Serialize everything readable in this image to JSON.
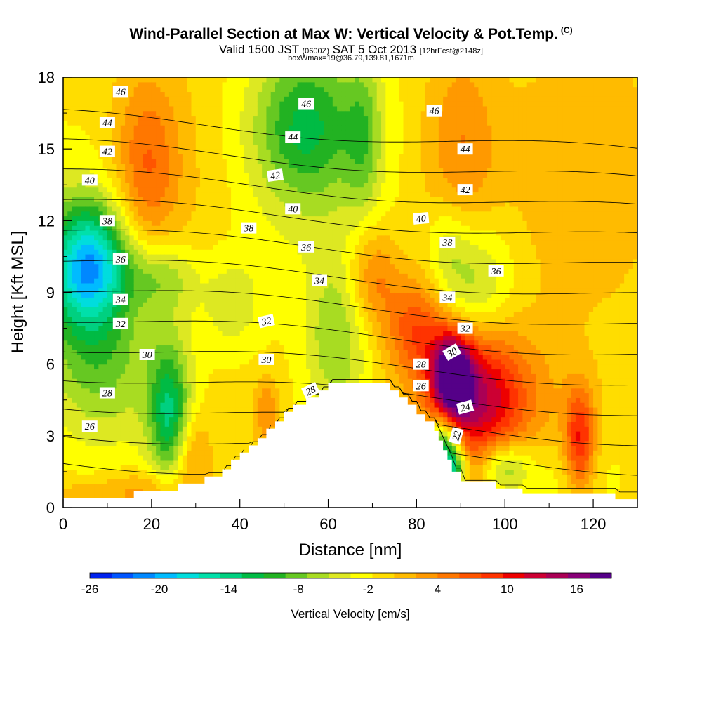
{
  "header": {
    "title": "Wind-Parallel Section at Max W: Vertical Velocity & Pot.Temp.",
    "copyright": "(C)",
    "subtitle_main_a": "Valid 1500 JST",
    "subtitle_small_a": "(0600Z)",
    "subtitle_main_b": "SAT 5 Oct 2013",
    "subtitle_small_b": "[12hrFcst@2148z]",
    "boxline": "boxWmax=19@36.79,139.81,1671m"
  },
  "chart_data": {
    "type": "heatmap",
    "xlabel": "Distance [nm]",
    "ylabel": "Height [Kft MSL]",
    "xlim": [
      0,
      130
    ],
    "ylim": [
      0,
      18
    ],
    "xticks": [
      0,
      20,
      40,
      60,
      80,
      100,
      120
    ],
    "yticks": [
      0,
      3,
      6,
      9,
      12,
      15,
      18
    ],
    "colorbar": {
      "title": "Vertical Velocity [cm/s]",
      "labels": [
        "-26",
        "-20",
        "-14",
        "-8",
        "-2",
        "4",
        "10",
        "16"
      ],
      "label_values": [
        -26,
        -20,
        -14,
        -8,
        -2,
        4,
        10,
        16
      ],
      "range": [
        -26,
        19
      ],
      "colors": [
        "#0022ee",
        "#0055ff",
        "#0088ff",
        "#00bbff",
        "#00dddd",
        "#00e0aa",
        "#00d080",
        "#00bb44",
        "#22b222",
        "#66c822",
        "#a8dc22",
        "#dde822",
        "#ffff00",
        "#ffdd00",
        "#ffbb00",
        "#ff9900",
        "#ff7700",
        "#ff5500",
        "#ff3300",
        "#ee0000",
        "#cc0033",
        "#aa0055",
        "#880077",
        "#550088"
      ]
    },
    "background_w": -1,
    "w_features": [
      {
        "x": 6,
        "y": 10.2,
        "sx": 6,
        "sy": 1.7,
        "w": -14
      },
      {
        "x": 4,
        "y": 9.5,
        "sx": 9,
        "sy": 3.5,
        "w": -6
      },
      {
        "x": 19,
        "y": 14.2,
        "sx": 5,
        "sy": 2.5,
        "w": 6
      },
      {
        "x": 22,
        "y": 12.5,
        "sx": 12,
        "sy": 5.5,
        "w": 2
      },
      {
        "x": 55,
        "y": 16,
        "sx": 8,
        "sy": 2.2,
        "w": -8
      },
      {
        "x": 55,
        "y": 15,
        "sx": 13,
        "sy": 4,
        "w": -3
      },
      {
        "x": 68,
        "y": 15.5,
        "sx": 3,
        "sy": 2.5,
        "w": -5
      },
      {
        "x": 90,
        "y": 15,
        "sx": 6,
        "sy": 3,
        "w": 5
      },
      {
        "x": 118,
        "y": 14,
        "sx": 12,
        "sy": 4,
        "w": 3
      },
      {
        "x": 93,
        "y": 9.5,
        "sx": 6,
        "sy": 1.8,
        "w": -6
      },
      {
        "x": 87,
        "y": 11,
        "sx": 3,
        "sy": 1.5,
        "w": -3
      },
      {
        "x": 70,
        "y": 9.7,
        "sx": 4,
        "sy": 1.5,
        "w": 6
      },
      {
        "x": 22,
        "y": 9.7,
        "sx": 6,
        "sy": 1,
        "w": -5
      },
      {
        "x": 10,
        "y": 6,
        "sx": 8,
        "sy": 2.5,
        "w": -5
      },
      {
        "x": 24,
        "y": 3.8,
        "sx": 3,
        "sy": 1.8,
        "w": -9
      },
      {
        "x": 24,
        "y": 5.5,
        "sx": 5,
        "sy": 3.5,
        "w": -4
      },
      {
        "x": 29,
        "y": 2.2,
        "sx": 3,
        "sy": 1.2,
        "w": 5
      },
      {
        "x": 46,
        "y": 4,
        "sx": 2,
        "sy": 1,
        "w": 5
      },
      {
        "x": 38,
        "y": 8.5,
        "sx": 5,
        "sy": 1.5,
        "w": -4
      },
      {
        "x": 62,
        "y": 7,
        "sx": 5,
        "sy": 2.5,
        "w": -6
      },
      {
        "x": 80,
        "y": 7.5,
        "sx": 5,
        "sy": 1.5,
        "w": 8
      },
      {
        "x": 88,
        "y": 5.5,
        "sx": 3,
        "sy": 1.2,
        "w": 18
      },
      {
        "x": 93,
        "y": 4.8,
        "sx": 7,
        "sy": 1.8,
        "w": 10
      },
      {
        "x": 98,
        "y": 3.7,
        "sx": 11,
        "sy": 2.6,
        "w": 6
      },
      {
        "x": 117,
        "y": 2.8,
        "sx": 2.5,
        "sy": 1.5,
        "w": 11
      },
      {
        "x": 86,
        "y": 2.5,
        "sx": 2.5,
        "sy": 1,
        "w": -15
      },
      {
        "x": 88.5,
        "y": 1.5,
        "sx": 2,
        "sy": 0.8,
        "w": -11
      },
      {
        "x": 100,
        "y": 1.7,
        "sx": 4,
        "sy": 0.8,
        "w": -8
      },
      {
        "x": 110,
        "y": 1.5,
        "sx": 10,
        "sy": 1.5,
        "w": -3
      },
      {
        "x": 20,
        "y": 0.8,
        "sx": 6,
        "sy": 0.6,
        "w": 4
      },
      {
        "x": 6,
        "y": 0.5,
        "sx": 7,
        "sy": 0.5,
        "w": 3
      }
    ],
    "terrain": {
      "x": [
        0,
        16,
        16,
        26,
        26,
        32,
        32,
        36,
        36,
        38,
        38,
        40,
        40,
        42,
        42,
        44,
        44,
        46,
        46,
        48,
        48,
        50,
        50,
        52,
        52,
        55,
        55,
        58,
        58,
        60,
        60,
        64,
        64,
        74,
        74,
        76,
        76,
        78,
        78,
        80,
        80,
        82,
        82,
        84,
        84,
        85,
        85,
        86,
        86,
        87,
        87,
        88,
        88,
        90,
        90,
        98,
        98,
        104,
        104,
        125,
        125,
        127,
        127,
        130
      ],
      "y": [
        0.4,
        0.4,
        0.7,
        0.7,
        1.0,
        1.0,
        1.3,
        1.3,
        1.6,
        1.6,
        2.0,
        2.0,
        2.3,
        2.3,
        2.6,
        2.6,
        2.9,
        2.9,
        3.3,
        3.3,
        3.6,
        3.6,
        4.0,
        4.0,
        4.3,
        4.3,
        4.6,
        4.6,
        4.9,
        4.9,
        5.2,
        5.2,
        5.2,
        5.2,
        4.9,
        4.9,
        4.6,
        4.6,
        4.3,
        4.3,
        3.9,
        3.9,
        3.6,
        3.6,
        3.2,
        3.2,
        2.8,
        2.8,
        2.4,
        2.4,
        2.0,
        2.0,
        1.5,
        1.5,
        1.1,
        1.1,
        0.8,
        0.8,
        0.6,
        0.6,
        0.35,
        0.35,
        0.35,
        0.35
      ]
    },
    "isentrope_labels": [
      {
        "text": "46",
        "x": 13,
        "y": 17.4,
        "rot": 0
      },
      {
        "text": "46",
        "x": 55,
        "y": 16.9,
        "rot": 0
      },
      {
        "text": "46",
        "x": 84,
        "y": 16.6,
        "rot": 0
      },
      {
        "text": "44",
        "x": 10,
        "y": 16.1,
        "rot": 0
      },
      {
        "text": "44",
        "x": 52,
        "y": 15.5,
        "rot": 0
      },
      {
        "text": "44",
        "x": 91,
        "y": 15.0,
        "rot": 0
      },
      {
        "text": "42",
        "x": 10,
        "y": 14.9,
        "rot": 0
      },
      {
        "text": "42",
        "x": 48,
        "y": 13.9,
        "rot": -8
      },
      {
        "text": "42",
        "x": 91,
        "y": 13.3,
        "rot": 0
      },
      {
        "text": "40",
        "x": 6,
        "y": 13.7,
        "rot": 0
      },
      {
        "text": "40",
        "x": 52,
        "y": 12.5,
        "rot": 0
      },
      {
        "text": "40",
        "x": 81,
        "y": 12.1,
        "rot": -5
      },
      {
        "text": "38",
        "x": 10,
        "y": 12.0,
        "rot": 0
      },
      {
        "text": "38",
        "x": 42,
        "y": 11.7,
        "rot": 0
      },
      {
        "text": "38",
        "x": 87,
        "y": 11.1,
        "rot": 0
      },
      {
        "text": "36",
        "x": 13,
        "y": 10.4,
        "rot": 0
      },
      {
        "text": "36",
        "x": 55,
        "y": 10.9,
        "rot": 0
      },
      {
        "text": "36",
        "x": 98,
        "y": 9.9,
        "rot": 0
      },
      {
        "text": "34",
        "x": 13,
        "y": 8.7,
        "rot": 0
      },
      {
        "text": "34",
        "x": 58,
        "y": 9.5,
        "rot": 0
      },
      {
        "text": "34",
        "x": 87,
        "y": 8.8,
        "rot": 0
      },
      {
        "text": "32",
        "x": 13,
        "y": 7.7,
        "rot": 0
      },
      {
        "text": "32",
        "x": 46,
        "y": 7.8,
        "rot": -12
      },
      {
        "text": "32",
        "x": 91,
        "y": 7.5,
        "rot": 0
      },
      {
        "text": "30",
        "x": 19,
        "y": 6.4,
        "rot": 0
      },
      {
        "text": "30",
        "x": 46,
        "y": 6.2,
        "rot": 0
      },
      {
        "text": "30",
        "x": 88,
        "y": 6.5,
        "rot": -30
      },
      {
        "text": "28",
        "x": 10,
        "y": 4.8,
        "rot": 0
      },
      {
        "text": "28",
        "x": 56,
        "y": 4.9,
        "rot": -25
      },
      {
        "text": "28",
        "x": 81,
        "y": 6.0,
        "rot": 0
      },
      {
        "text": "26",
        "x": 6,
        "y": 3.4,
        "rot": 0
      },
      {
        "text": "26",
        "x": 81,
        "y": 5.1,
        "rot": 0
      },
      {
        "text": "24",
        "x": 91,
        "y": 4.2,
        "rot": -15
      },
      {
        "text": "22",
        "x": 89,
        "y": 3.0,
        "rot": -75
      }
    ]
  }
}
